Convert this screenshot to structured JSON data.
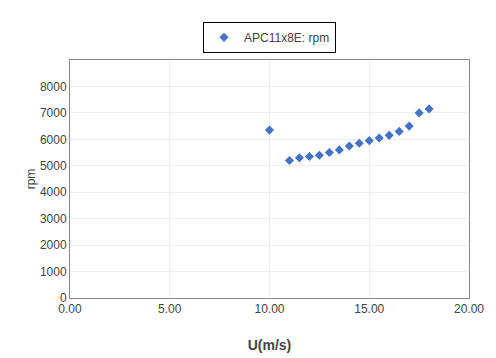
{
  "chart_data": {
    "type": "scatter",
    "x": [
      10.0,
      11.0,
      11.5,
      12.0,
      12.5,
      13.0,
      13.5,
      14.0,
      14.5,
      15.0,
      15.5,
      16.0,
      16.5,
      17.0,
      17.5,
      18.0
    ],
    "series": [
      {
        "name": "APC11x8E: rpm",
        "color": "#4472C4",
        "marker": "diamond",
        "values": [
          6350,
          5200,
          5300,
          5350,
          5400,
          5500,
          5600,
          5750,
          5850,
          5950,
          6050,
          6150,
          6300,
          6500,
          7000,
          7150
        ]
      }
    ],
    "xlabel": "U(m/s)",
    "ylabel": "rpm",
    "xlim": [
      0.0,
      20.0
    ],
    "ylim": [
      0,
      9000
    ],
    "xticks": [
      {
        "value": 0.0,
        "label": "0.00"
      },
      {
        "value": 5.0,
        "label": "5.00"
      },
      {
        "value": 10.0,
        "label": "10.00"
      },
      {
        "value": 15.0,
        "label": "15.00"
      },
      {
        "value": 20.0,
        "label": "20.00"
      }
    ],
    "yticks": [
      0,
      1000,
      2000,
      3000,
      4000,
      5000,
      6000,
      7000,
      8000
    ],
    "grid": true,
    "legend": "top"
  }
}
